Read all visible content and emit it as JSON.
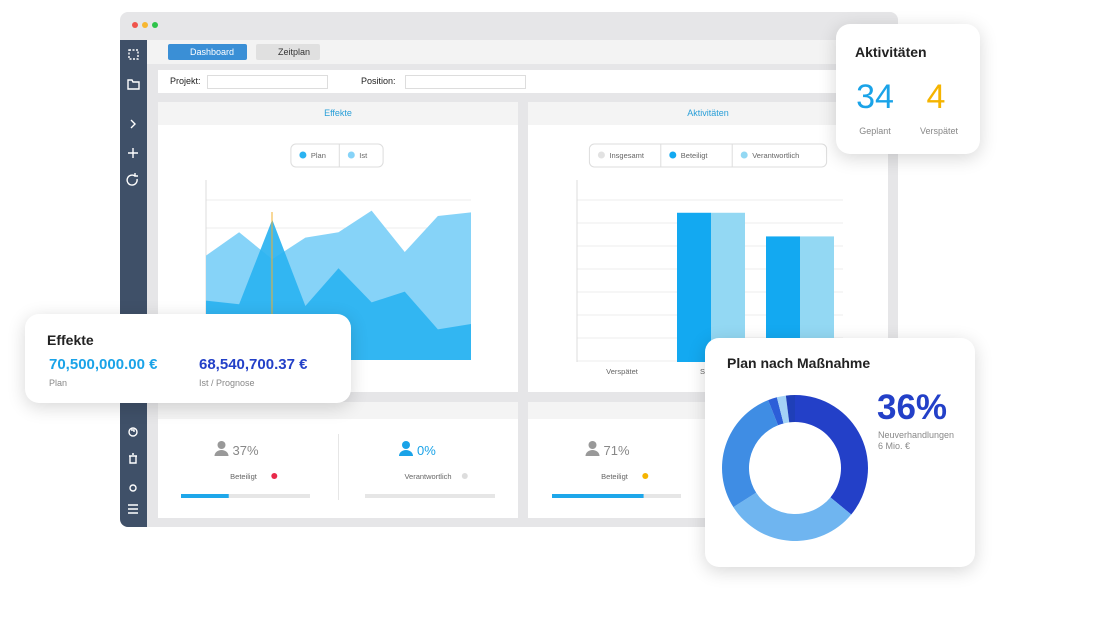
{
  "app": {
    "tabs": [
      "Dashboard",
      "Zeitplan"
    ],
    "filters": [
      "Projekt:",
      "Position:"
    ]
  },
  "chart_data": [
    {
      "type": "area",
      "title": "Effekte",
      "categories": [
        null,
        null,
        null,
        null,
        null,
        null,
        null,
        null,
        null
      ],
      "series": [
        {
          "name": "Plan",
          "color": "#2bb3f1",
          "values": [
            33,
            31,
            78,
            30,
            51,
            32,
            38,
            17,
            20
          ]
        },
        {
          "name": "Ist",
          "color": "#86d3f8",
          "values": [
            58,
            71,
            56,
            68,
            71,
            83,
            60,
            80,
            82
          ]
        }
      ],
      "ylim": [
        0,
        100
      ],
      "grid": true
    },
    {
      "type": "bar",
      "title": "Aktivitäten",
      "categories": [
        "Verspätet",
        "Startet",
        null
      ],
      "series": [
        {
          "name": "Insgesamt",
          "color": "#e2e2e2",
          "values": [
            0,
            0,
            0
          ]
        },
        {
          "name": "Beteiligt",
          "color": "#13a9f1",
          "values": [
            0,
            82,
            69
          ]
        },
        {
          "name": "Verantwortlich",
          "color": "#93d8f3",
          "values": [
            0,
            82,
            69
          ]
        }
      ],
      "ylim": [
        0,
        100
      ],
      "grid": true
    },
    {
      "type": "pie",
      "title": "Plan nach Maßnahme",
      "values": [
        36,
        30,
        28,
        2,
        2,
        2
      ],
      "colors": [
        "#2340c8",
        "#6fb5f0",
        "#3f8de4",
        "#2c5ed8",
        "#a3d2f6",
        "#1f3fb8"
      ],
      "donut": true
    }
  ],
  "kpis": {
    "xlim": [
      0,
      100
    ],
    "items": [
      {
        "value": {
          "value": 37,
          "label": "37%"
        },
        "label": "Beteiligt"
      },
      {
        "value": {
          "value": 0,
          "label": "0%"
        },
        "label": "Verantwortlich"
      },
      {
        "value": {
          "value": 71,
          "label": "71%"
        },
        "label": "Beteiligt"
      }
    ]
  },
  "activity_card": {
    "title": "Aktivitäten",
    "stats": [
      {
        "value": 34,
        "label": "Geplant"
      },
      {
        "value": 4,
        "label": "Verspätet"
      }
    ]
  },
  "effects_card": {
    "title": "Effekte",
    "stats": [
      {
        "value": "70,500,000.00 €",
        "label": "Plan"
      },
      {
        "value": "68,540,700.37 €",
        "label": "Ist / Prognose"
      }
    ]
  },
  "donut_card": {
    "percent": "36%",
    "caption": "Neuverhandlungen",
    "note": "6 Mio. €"
  }
}
